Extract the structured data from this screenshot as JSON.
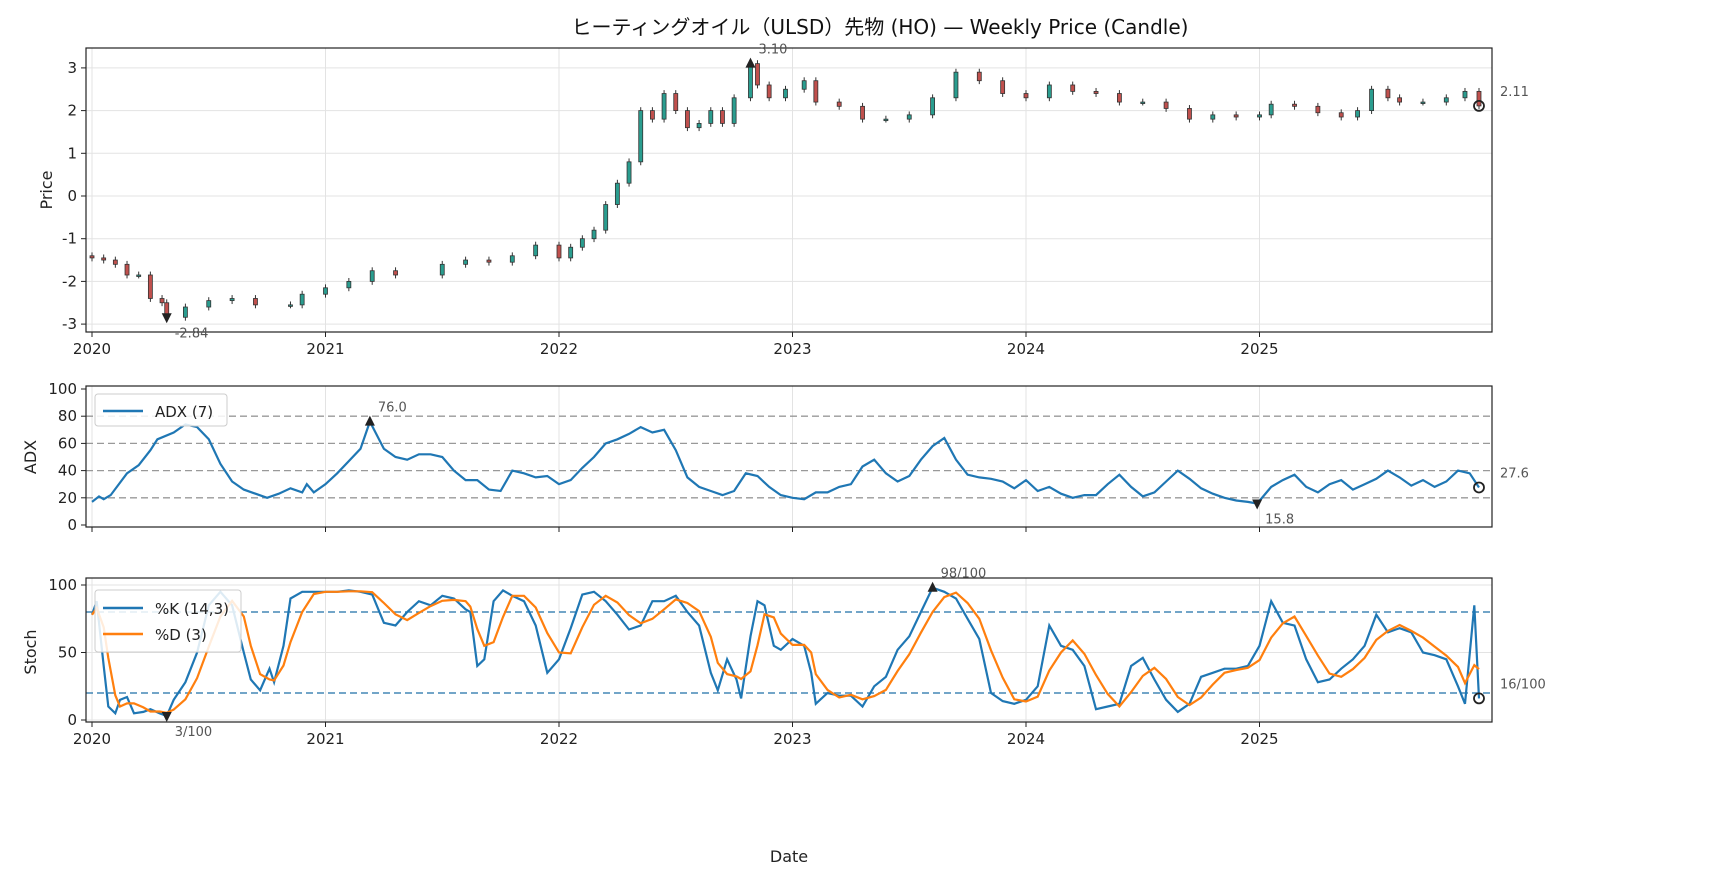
{
  "chart_data": [
    {
      "type": "candlestick",
      "title": "ヒーティングオイル（ULSD）先物 (HO) — Weekly Price (Candle)",
      "ylabel": "Price",
      "ylim": [
        -3.2,
        3.45
      ],
      "yticks": [
        "-3",
        "-2",
        "-1",
        "0",
        "1",
        "2",
        "3"
      ],
      "xticks": [
        "2020",
        "2021",
        "2022",
        "2023",
        "2024",
        "2025"
      ],
      "x": [
        2020.0,
        2020.05,
        2020.1,
        2020.15,
        2020.2,
        2020.25,
        2020.3,
        2020.32,
        2020.4,
        2020.5,
        2020.6,
        2020.7,
        2020.85,
        2020.9,
        2021.0,
        2021.1,
        2021.2,
        2021.3,
        2021.5,
        2021.6,
        2021.7,
        2021.8,
        2021.9,
        2022.0,
        2022.05,
        2022.1,
        2022.15,
        2022.2,
        2022.25,
        2022.3,
        2022.35,
        2022.4,
        2022.45,
        2022.5,
        2022.55,
        2022.6,
        2022.65,
        2022.7,
        2022.75,
        2022.82,
        2022.85,
        2022.9,
        2022.97,
        2023.05,
        2023.1,
        2023.2,
        2023.3,
        2023.4,
        2023.5,
        2023.6,
        2023.7,
        2023.8,
        2023.9,
        2024.0,
        2024.1,
        2024.2,
        2024.3,
        2024.4,
        2024.5,
        2024.6,
        2024.7,
        2024.8,
        2024.9,
        2025.0,
        2025.05,
        2025.15,
        2025.25,
        2025.35,
        2025.42,
        2025.48,
        2025.55,
        2025.6,
        2025.7,
        2025.8,
        2025.88,
        2025.94
      ],
      "close": [
        -1.45,
        -1.5,
        -1.6,
        -1.85,
        -1.85,
        -2.4,
        -2.5,
        -2.84,
        -2.6,
        -2.45,
        -2.4,
        -2.55,
        -2.55,
        -2.3,
        -2.15,
        -2.0,
        -1.75,
        -1.85,
        -1.6,
        -1.5,
        -1.55,
        -1.4,
        -1.15,
        -1.45,
        -1.2,
        -1.0,
        -0.8,
        -0.2,
        0.3,
        0.8,
        2.0,
        1.8,
        2.4,
        2.0,
        1.6,
        1.7,
        2.0,
        1.7,
        2.3,
        3.1,
        2.6,
        2.3,
        2.5,
        2.7,
        2.2,
        2.1,
        1.8,
        1.8,
        1.9,
        2.3,
        2.9,
        2.7,
        2.4,
        2.3,
        2.6,
        2.45,
        2.4,
        2.2,
        2.2,
        2.05,
        1.8,
        1.9,
        1.85,
        1.9,
        2.15,
        2.1,
        1.95,
        1.85,
        2.0,
        2.5,
        2.3,
        2.2,
        2.2,
        2.3,
        2.45,
        2.11
      ],
      "annotations": {
        "max": {
          "x": 2022.82,
          "value": 3.1,
          "label": "3.10"
        },
        "min": {
          "x": 2020.32,
          "value": -2.84,
          "label": "-2.84"
        },
        "last": {
          "x": 2025.94,
          "value": 2.11,
          "label": "2.11"
        }
      },
      "colors": {
        "up": "#2a9d8f",
        "down": "#c0504d",
        "wick": "#333333"
      }
    },
    {
      "type": "line",
      "ylabel": "ADX",
      "ylim": [
        0,
        100
      ],
      "yticks": [
        "0",
        "20",
        "40",
        "60",
        "80",
        "100"
      ],
      "reference_lines": [
        20,
        40,
        60,
        80
      ],
      "legend": {
        "label": "ADX (7)",
        "placement": "top-left"
      },
      "color": "#1f77b4",
      "x": [
        2020.0,
        2020.03,
        2020.05,
        2020.08,
        2020.15,
        2020.2,
        2020.25,
        2020.28,
        2020.35,
        2020.4,
        2020.45,
        2020.5,
        2020.55,
        2020.6,
        2020.65,
        2020.7,
        2020.75,
        2020.8,
        2020.85,
        2020.9,
        2020.92,
        2020.95,
        2021.0,
        2021.05,
        2021.1,
        2021.15,
        2021.19,
        2021.25,
        2021.3,
        2021.35,
        2021.4,
        2021.45,
        2021.5,
        2021.55,
        2021.6,
        2021.65,
        2021.7,
        2021.75,
        2021.8,
        2021.85,
        2021.9,
        2021.95,
        2022.0,
        2022.05,
        2022.1,
        2022.15,
        2022.2,
        2022.25,
        2022.3,
        2022.35,
        2022.4,
        2022.45,
        2022.5,
        2022.55,
        2022.6,
        2022.65,
        2022.7,
        2022.75,
        2022.8,
        2022.85,
        2022.9,
        2022.95,
        2023.0,
        2023.05,
        2023.1,
        2023.15,
        2023.2,
        2023.25,
        2023.3,
        2023.35,
        2023.4,
        2023.45,
        2023.5,
        2023.55,
        2023.6,
        2023.65,
        2023.7,
        2023.75,
        2023.8,
        2023.85,
        2023.9,
        2023.95,
        2024.0,
        2024.05,
        2024.1,
        2024.15,
        2024.2,
        2024.25,
        2024.3,
        2024.35,
        2024.4,
        2024.45,
        2024.5,
        2024.55,
        2024.6,
        2024.65,
        2024.7,
        2024.75,
        2024.8,
        2024.85,
        2024.9,
        2024.95,
        2024.99,
        2025.05,
        2025.1,
        2025.15,
        2025.2,
        2025.25,
        2025.3,
        2025.35,
        2025.4,
        2025.45,
        2025.5,
        2025.55,
        2025.6,
        2025.65,
        2025.7,
        2025.75,
        2025.8,
        2025.85,
        2025.9,
        2025.94
      ],
      "values": [
        17,
        21,
        19,
        22,
        38,
        44,
        55,
        63,
        68,
        74,
        72,
        63,
        45,
        32,
        26,
        23,
        20,
        23,
        27,
        24,
        30,
        24,
        30,
        38,
        47,
        56,
        76,
        56,
        50,
        48,
        52,
        52,
        50,
        40,
        33,
        33,
        26,
        25,
        40,
        38,
        35,
        36,
        30,
        33,
        42,
        50,
        60,
        63,
        67,
        72,
        68,
        70,
        55,
        35,
        28,
        25,
        22,
        25,
        38,
        36,
        28,
        22,
        20,
        19,
        24,
        24,
        28,
        30,
        43,
        48,
        38,
        32,
        36,
        48,
        58,
        64,
        48,
        37,
        35,
        34,
        32,
        27,
        33,
        25,
        28,
        23,
        20,
        22,
        22,
        30,
        37,
        28,
        21,
        24,
        32,
        40,
        34,
        27,
        23,
        20,
        18,
        17,
        15.8,
        28,
        33,
        37,
        28,
        24,
        30,
        33,
        26,
        30,
        34,
        40,
        35,
        29,
        33,
        28,
        32,
        40,
        38,
        27.6
      ],
      "annotations": {
        "max": {
          "x": 2021.19,
          "value": 76.0,
          "label": "76.0"
        },
        "min": {
          "x": 2024.99,
          "value": 15.8,
          "label": "15.8"
        },
        "last": {
          "x": 2025.94,
          "value": 27.6,
          "label": "27.6"
        }
      }
    },
    {
      "type": "line",
      "ylabel": "Stoch",
      "xlabel": "Date",
      "ylim": [
        0,
        100
      ],
      "yticks": [
        "0",
        "50",
        "100"
      ],
      "reference_lines": [
        20,
        80
      ],
      "xticks": [
        "2020",
        "2021",
        "2022",
        "2023",
        "2024",
        "2025"
      ],
      "series": [
        {
          "name": "%K (14,3)",
          "color": "#1f77b4"
        },
        {
          "name": "%D (3)",
          "color": "#ff7f0e",
          "smoothing": 3
        }
      ],
      "x": [
        2020.0,
        2020.02,
        2020.05,
        2020.07,
        2020.1,
        2020.12,
        2020.15,
        2020.18,
        2020.22,
        2020.25,
        2020.29,
        2020.32,
        2020.35,
        2020.4,
        2020.45,
        2020.5,
        2020.55,
        2020.6,
        2020.65,
        2020.68,
        2020.72,
        2020.76,
        2020.78,
        2020.82,
        2020.85,
        2020.9,
        2020.95,
        2021.0,
        2021.05,
        2021.1,
        2021.15,
        2021.2,
        2021.25,
        2021.3,
        2021.35,
        2021.4,
        2021.45,
        2021.5,
        2021.55,
        2021.6,
        2021.62,
        2021.65,
        2021.68,
        2021.72,
        2021.76,
        2021.8,
        2021.85,
        2021.9,
        2021.95,
        2022.0,
        2022.05,
        2022.1,
        2022.15,
        2022.2,
        2022.25,
        2022.3,
        2022.35,
        2022.4,
        2022.45,
        2022.5,
        2022.55,
        2022.6,
        2022.65,
        2022.68,
        2022.72,
        2022.76,
        2022.78,
        2022.82,
        2022.85,
        2022.88,
        2022.92,
        2022.95,
        2023.0,
        2023.05,
        2023.08,
        2023.1,
        2023.15,
        2023.2,
        2023.25,
        2023.3,
        2023.35,
        2023.4,
        2023.45,
        2023.5,
        2023.55,
        2023.6,
        2023.65,
        2023.7,
        2023.75,
        2023.8,
        2023.85,
        2023.9,
        2023.95,
        2024.0,
        2024.05,
        2024.1,
        2024.15,
        2024.2,
        2024.25,
        2024.3,
        2024.35,
        2024.4,
        2024.45,
        2024.5,
        2024.55,
        2024.6,
        2024.65,
        2024.7,
        2024.75,
        2024.8,
        2024.85,
        2024.9,
        2024.95,
        2025.0,
        2025.05,
        2025.1,
        2025.15,
        2025.2,
        2025.25,
        2025.3,
        2025.35,
        2025.4,
        2025.45,
        2025.5,
        2025.55,
        2025.6,
        2025.65,
        2025.7,
        2025.75,
        2025.8,
        2025.85,
        2025.88,
        2025.92,
        2025.94
      ],
      "k": [
        78,
        88,
        40,
        10,
        5,
        15,
        17,
        5,
        6,
        8,
        5,
        3,
        15,
        28,
        50,
        85,
        95,
        85,
        50,
        30,
        22,
        38,
        28,
        55,
        90,
        95,
        95,
        95,
        95,
        96,
        95,
        93,
        72,
        70,
        80,
        88,
        85,
        92,
        90,
        82,
        80,
        40,
        45,
        88,
        96,
        92,
        88,
        70,
        35,
        45,
        68,
        93,
        95,
        88,
        78,
        67,
        70,
        88,
        88,
        92,
        80,
        70,
        35,
        22,
        45,
        30,
        16,
        62,
        88,
        85,
        55,
        52,
        60,
        55,
        35,
        12,
        20,
        18,
        18,
        10,
        25,
        32,
        52,
        62,
        80,
        98,
        95,
        90,
        75,
        60,
        20,
        14,
        12,
        15,
        25,
        70,
        55,
        52,
        40,
        8,
        10,
        12,
        40,
        46,
        30,
        15,
        6,
        12,
        32,
        35,
        38,
        38,
        40,
        55,
        88,
        72,
        70,
        45,
        28,
        30,
        38,
        45,
        55,
        78,
        65,
        68,
        65,
        50,
        48,
        45,
        25,
        12,
        85,
        16
      ],
      "annotations": {
        "max": {
          "x": 2023.6,
          "value": 98,
          "label": "98/100"
        },
        "min": {
          "x": 2020.32,
          "value": 3,
          "label": "3/100"
        },
        "last": {
          "x": 2025.94,
          "value": 16,
          "label": "16/100"
        }
      }
    }
  ]
}
